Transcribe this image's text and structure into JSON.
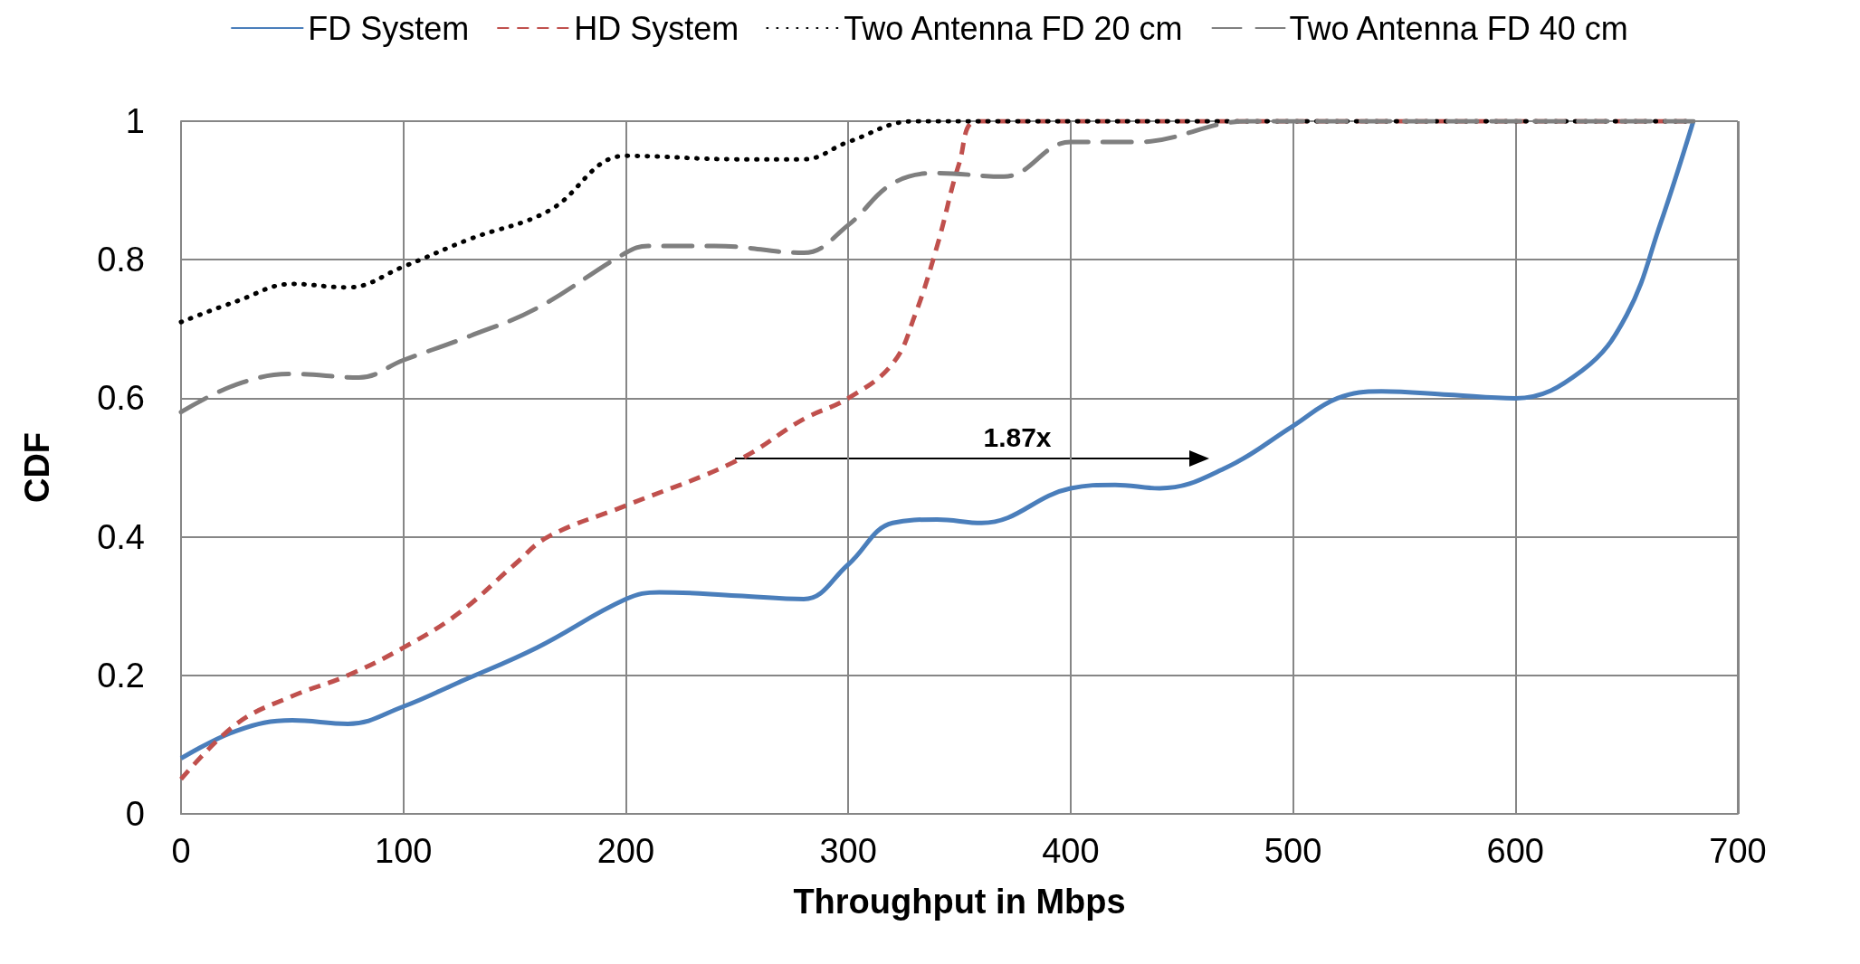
{
  "chart_data": {
    "type": "line",
    "xlabel": "Throughput in Mbps",
    "ylabel": "CDF",
    "xlim": [
      0,
      700
    ],
    "xticks": [
      0,
      100,
      200,
      300,
      400,
      500,
      600,
      700
    ],
    "ylim": [
      0,
      1
    ],
    "yticks": [
      0,
      0.2,
      0.4,
      0.6,
      0.8,
      1
    ],
    "grid": true,
    "legend": "top",
    "marker": "none",
    "annotations": [
      "1.87x"
    ],
    "series": [
      {
        "name": "FD System",
        "color": "#4a7ebb",
        "line_style": "solid",
        "x": [
          0,
          25,
          50,
          75,
          100,
          125,
          160,
          200,
          215,
          250,
          280,
          300,
          320,
          340,
          360,
          400,
          420,
          440,
          470,
          500,
          520,
          540,
          570,
          600,
          630,
          650,
          665,
          680
        ],
        "values": [
          0.08,
          0.12,
          0.135,
          0.13,
          0.155,
          0.19,
          0.24,
          0.31,
          0.32,
          0.315,
          0.31,
          0.36,
          0.42,
          0.425,
          0.42,
          0.47,
          0.475,
          0.47,
          0.5,
          0.56,
          0.6,
          0.61,
          0.605,
          0.6,
          0.64,
          0.72,
          0.85,
          1
        ]
      },
      {
        "name": "HD System",
        "color": "#c0504d",
        "line_style": "dashed",
        "x": [
          0,
          25,
          50,
          75,
          100,
          125,
          150,
          165,
          200,
          250,
          280,
          300,
          320,
          330,
          340,
          350,
          358,
          400,
          680
        ],
        "values": [
          0.05,
          0.13,
          0.17,
          0.2,
          0.24,
          0.29,
          0.36,
          0.4,
          0.445,
          0.51,
          0.57,
          0.6,
          0.65,
          0.72,
          0.82,
          0.94,
          1,
          1,
          1
        ]
      },
      {
        "name": "Two Antenna FD 20 cm",
        "color": "#000000",
        "line_style": "dotted",
        "x": [
          0,
          25,
          50,
          75,
          100,
          130,
          165,
          200,
          250,
          280,
          300,
          330,
          680
        ],
        "values": [
          0.71,
          0.74,
          0.765,
          0.76,
          0.79,
          0.83,
          0.87,
          0.95,
          0.945,
          0.945,
          0.97,
          1,
          1
        ]
      },
      {
        "name": "Two Antenna FD 40 cm",
        "color": "#7f7f7f",
        "line_style": "long-dashed",
        "x": [
          0,
          25,
          50,
          80,
          100,
          130,
          160,
          200,
          210,
          240,
          280,
          300,
          320,
          340,
          370,
          400,
          430,
          480,
          680
        ],
        "values": [
          0.58,
          0.62,
          0.635,
          0.63,
          0.655,
          0.69,
          0.73,
          0.81,
          0.82,
          0.82,
          0.81,
          0.85,
          0.91,
          0.925,
          0.92,
          0.97,
          0.97,
          1,
          1
        ]
      }
    ]
  }
}
